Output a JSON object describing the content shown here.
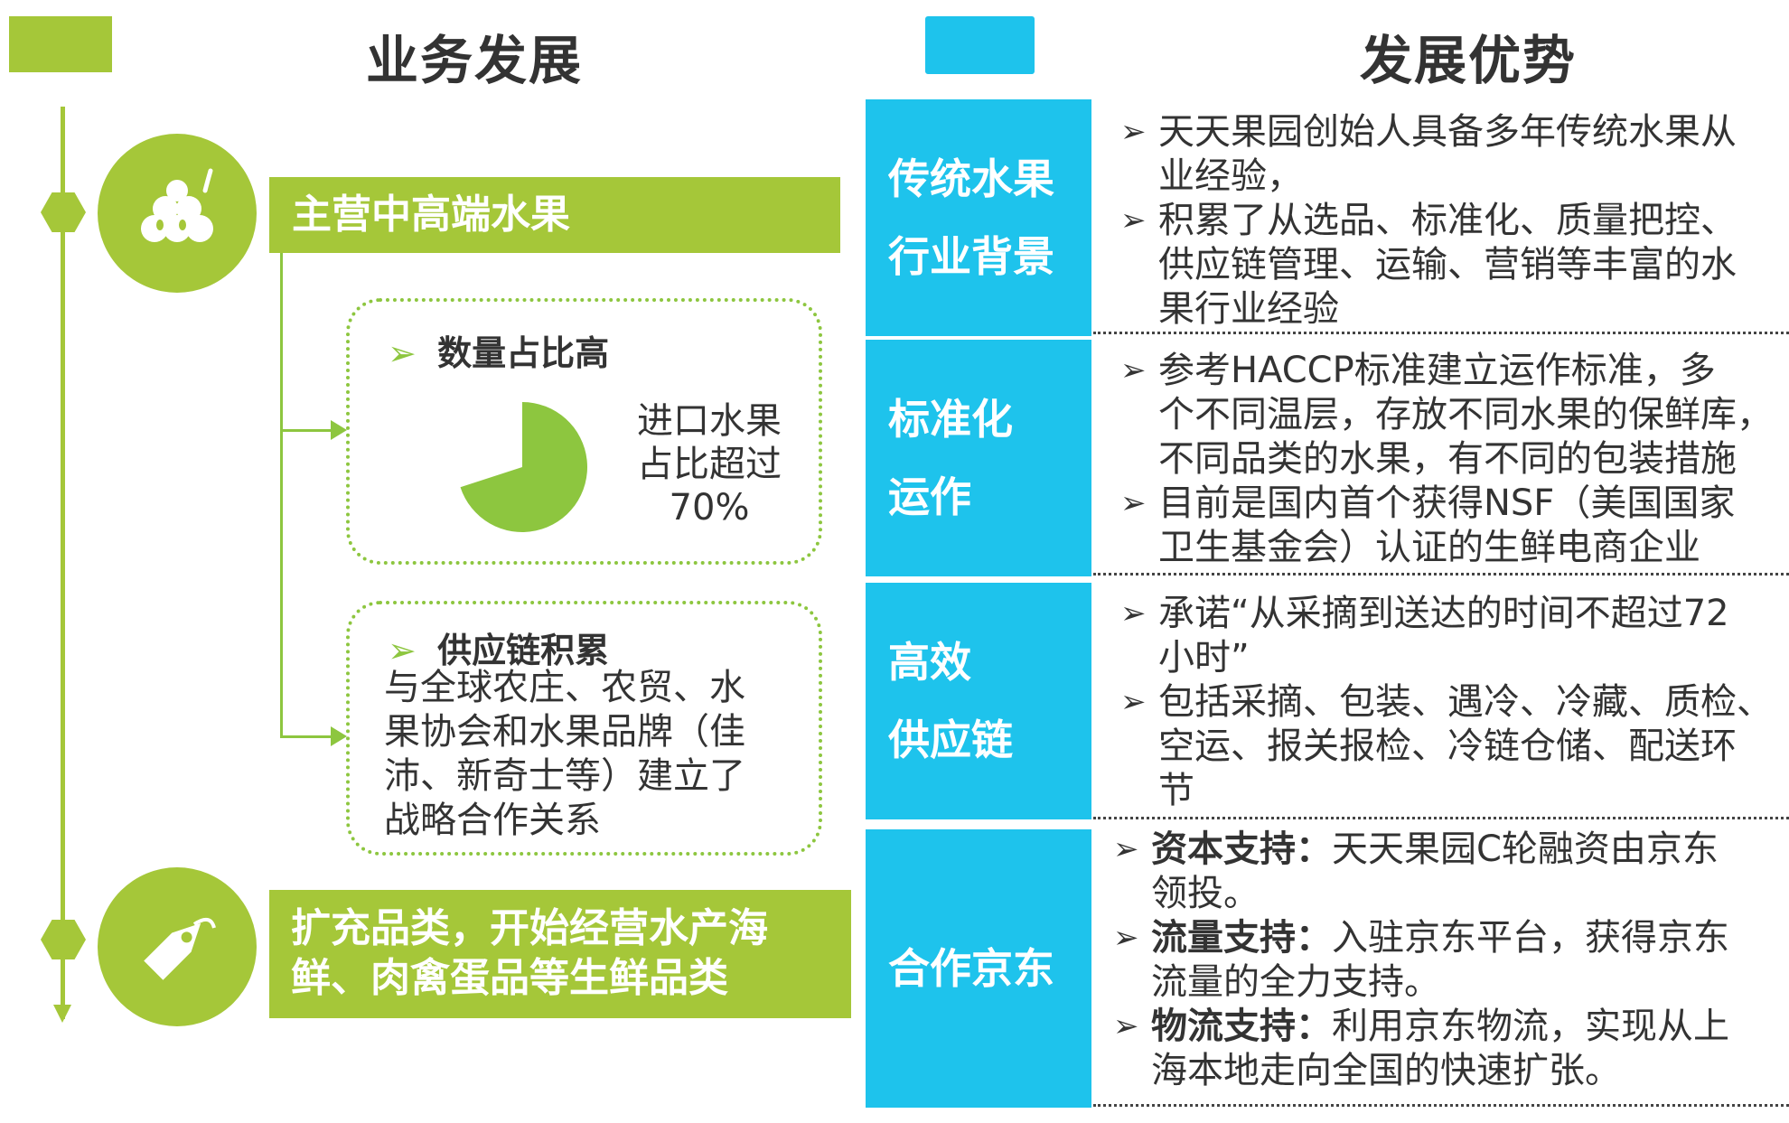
{
  "left": {
    "title": "业务发展",
    "top_bar": "主营中高端水果",
    "box1": {
      "heading": "数量占比高",
      "text_lines": [
        "进口水果",
        "占比超过",
        "70%"
      ],
      "pie_value": 0.7
    },
    "box2": {
      "heading": "供应链积累",
      "text_lines": [
        "与全球农庄、农贸、水",
        "果协会和水果品牌（佳",
        "沛、新奇士等）建立了",
        "战略合作关系"
      ]
    },
    "bottom_bar_lines": [
      "扩充品类，开始经营水产海",
      "鲜、肉禽蛋品等生鲜品类"
    ],
    "icons": [
      "fruit-icon",
      "tag-icon"
    ],
    "bullet_glyph": "➢"
  },
  "right": {
    "title": "发展优势",
    "bullet_glyph": "➢",
    "rows": [
      {
        "label_lines": [
          "传统水果",
          "行业背景"
        ],
        "items": [
          {
            "lines": [
              "天天果园创始人具备多年传统水果从",
              "业经验，"
            ]
          },
          {
            "lines": [
              "积累了从选品、标准化、质量把控、",
              "供应链管理、运输、营销等丰富的水",
              "果行业经验"
            ]
          }
        ]
      },
      {
        "label_lines": [
          "标准化",
          "运作"
        ],
        "items": [
          {
            "lines": [
              "参考HACCP标准建立运作标准，多",
              "个不同温层，存放不同水果的保鲜库，",
              "不同品类的水果，有不同的包装措施"
            ]
          },
          {
            "lines": [
              "目前是国内首个获得NSF（美国国家",
              "卫生基金会）认证的生鲜电商企业"
            ]
          }
        ]
      },
      {
        "label_lines": [
          "高效",
          "供应链"
        ],
        "items": [
          {
            "lines": [
              "承诺“从采摘到送达的时间不超过72",
              "小时”"
            ]
          },
          {
            "lines": [
              " 包括采摘、包装、遇冷、冷藏、质检、",
              "空运、报关报检、冷链仓储、配送环",
              "节"
            ]
          }
        ]
      },
      {
        "label_lines": [
          "合作京东"
        ],
        "items": [
          {
            "bold": "资本支持：",
            "lines": [
              "天天果园C轮融资由京东",
              "领投。"
            ]
          },
          {
            "bold": "流量支持：",
            "lines": [
              "入驻京东平台，获得京东",
              "流量的全力支持。"
            ]
          },
          {
            "bold": "物流支持：",
            "lines": [
              "利用京东物流，实现从上",
              "海本地走向全国的快速扩张。"
            ]
          }
        ]
      }
    ]
  },
  "colors": {
    "green": "#a5c739",
    "light_green": "#8dc63f",
    "cyan": "#1ec3ec"
  }
}
